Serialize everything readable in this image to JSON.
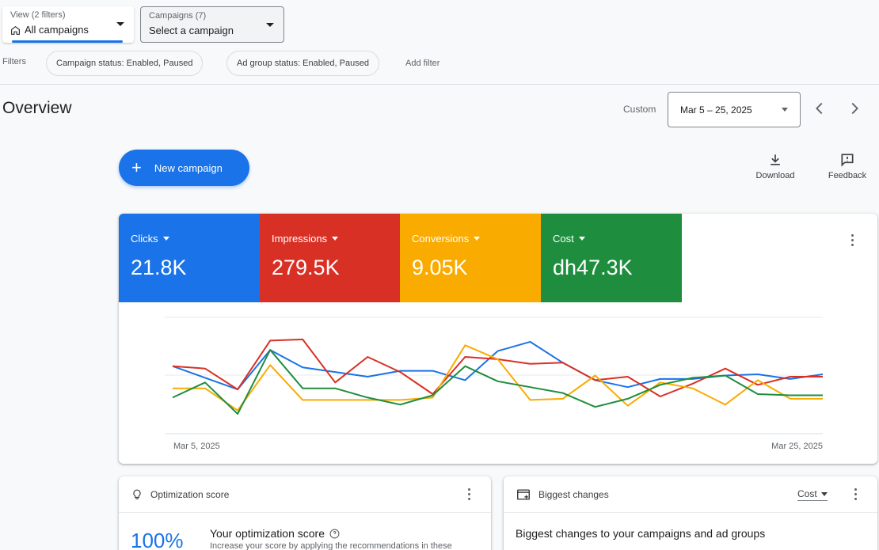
{
  "selectors": {
    "view": {
      "caption": "View (2 filters)",
      "value": "All campaigns"
    },
    "campaigns": {
      "caption": "Campaigns (7)",
      "value": "Select a campaign"
    }
  },
  "filters": {
    "label": "Filters",
    "chips": [
      "Campaign status: Enabled, Paused",
      "Ad group status: Enabled, Paused"
    ],
    "add_filter": "Add filter"
  },
  "overview": {
    "title": "Overview",
    "date_range_type": "Custom",
    "date_range": "Mar 5 – 25, 2025"
  },
  "actions": {
    "new_campaign": "New campaign",
    "download": "Download",
    "feedback": "Feedback"
  },
  "metrics": [
    {
      "label": "Clicks",
      "value": "21.8K",
      "color": "#1a73e8"
    },
    {
      "label": "Impressions",
      "value": "279.5K",
      "color": "#d93025"
    },
    {
      "label": "Conversions",
      "value": "9.05K",
      "color": "#f9ab00"
    },
    {
      "label": "Cost",
      "value": "dh47.3K",
      "color": "#1e8e3e"
    }
  ],
  "chart_data": {
    "type": "line",
    "x_start_label": "Mar 5, 2025",
    "x_end_label": "Mar 25, 2025",
    "grid": true,
    "series": [
      {
        "name": "Clicks",
        "color": "#1a73e8",
        "values": [
          0.58,
          0.48,
          0.38,
          0.72,
          0.57,
          0.53,
          0.49,
          0.54,
          0.54,
          0.46,
          0.71,
          0.79,
          0.61,
          0.46,
          0.4,
          0.47,
          0.47,
          0.5,
          0.51,
          0.47,
          0.51
        ]
      },
      {
        "name": "Impressions",
        "color": "#d93025",
        "values": [
          0.58,
          0.56,
          0.38,
          0.8,
          0.81,
          0.44,
          0.66,
          0.53,
          0.34,
          0.66,
          0.64,
          0.6,
          0.61,
          0.46,
          0.49,
          0.32,
          0.43,
          0.56,
          0.42,
          0.49,
          0.49
        ]
      },
      {
        "name": "Conversions",
        "color": "#f9ab00",
        "values": [
          0.39,
          0.39,
          0.2,
          0.59,
          0.29,
          0.29,
          0.29,
          0.29,
          0.31,
          0.76,
          0.64,
          0.29,
          0.3,
          0.5,
          0.24,
          0.44,
          0.39,
          0.25,
          0.46,
          0.3,
          0.3
        ]
      },
      {
        "name": "Cost",
        "color": "#1e8e3e",
        "values": [
          0.31,
          0.44,
          0.17,
          0.72,
          0.39,
          0.39,
          0.31,
          0.25,
          0.33,
          0.58,
          0.45,
          0.4,
          0.35,
          0.23,
          0.3,
          0.42,
          0.48,
          0.5,
          0.34,
          0.33,
          0.33
        ]
      }
    ]
  },
  "optimization": {
    "title": "Optimization score",
    "score": "100%",
    "heading": "Your optimization score",
    "description": "Increase your score by applying the recommendations in these"
  },
  "biggest_changes": {
    "title": "Biggest changes",
    "metric": "Cost",
    "heading": "Biggest changes to your campaigns and ad groups"
  }
}
